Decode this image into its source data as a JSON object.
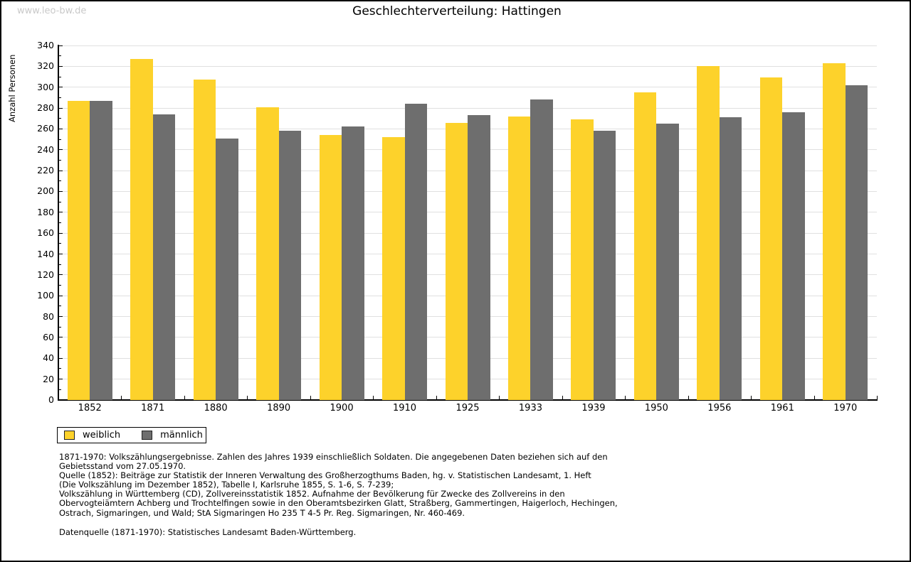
{
  "watermark": "www.leo-bw.de",
  "title": "Geschlechterverteilung: Hattingen",
  "colors": {
    "bar_weiblich": "#fdd22b",
    "bar_maennlich": "#6e6e6e",
    "gridline": "#e0e0e0",
    "axis": "#000000",
    "watermark": "#c9c9c9"
  },
  "chart_data": {
    "type": "bar",
    "title": "Geschlechterverteilung: Hattingen",
    "xlabel": "",
    "ylabel": "Anzahl Personen",
    "ylim": [
      0,
      340
    ],
    "y_major_ticks": [
      0,
      20,
      40,
      60,
      80,
      100,
      120,
      140,
      160,
      180,
      200,
      220,
      240,
      260,
      280,
      300,
      320,
      340
    ],
    "y_minor_tick_step": 10,
    "grid": true,
    "legend_position": "bottom-left",
    "categories": [
      "1852",
      "1871",
      "1880",
      "1890",
      "1900",
      "1910",
      "1925",
      "1933",
      "1939",
      "1950",
      "1956",
      "1961",
      "1970"
    ],
    "series": [
      {
        "name": "weiblich",
        "color": "#fdd22b",
        "values": [
          287,
          327,
          307,
          281,
          254,
          252,
          266,
          272,
          269,
          295,
          320,
          309,
          323
        ]
      },
      {
        "name": "männlich",
        "color": "#6e6e6e",
        "values": [
          287,
          274,
          251,
          258,
          262,
          284,
          273,
          288,
          258,
          265,
          271,
          276,
          302
        ]
      }
    ]
  },
  "legend": {
    "items": [
      {
        "label": "weiblich",
        "color": "#fdd22b"
      },
      {
        "label": "männlich",
        "color": "#6e6e6e"
      }
    ]
  },
  "source_note": {
    "lines": [
      "1871-1970: Volkszählungsergebnisse. Zahlen des Jahres 1939 einschließlich Soldaten. Die angegebenen Daten beziehen sich auf den",
      "Gebietsstand vom 27.05.1970.",
      "Quelle (1852): Beiträge zur Statistik der Inneren Verwaltung des Großherzogthums Baden, hg. v. Statistischen Landesamt, 1. Heft",
      "(Die Volkszählung im Dezember 1852), Tabelle I, Karlsruhe 1855, S. 1-6, S. 7-239;",
      "Volkszählung in Württemberg (CD), Zollvereinsstatistik 1852. Aufnahme der Bevölkerung für Zwecke des Zollvereins in den",
      "Obervogteiämtern Achberg und Trochtelfingen sowie in den Oberamtsbezirken Glatt, Straßberg, Gammertingen, Haigerloch, Hechingen,",
      "Ostrach, Sigmaringen, und Wald; StA Sigmaringen Ho 235 T 4-5 Pr. Reg. Sigmaringen, Nr. 460-469."
    ],
    "datasource": "Datenquelle (1871-1970): Statistisches Landesamt Baden-Württemberg."
  }
}
